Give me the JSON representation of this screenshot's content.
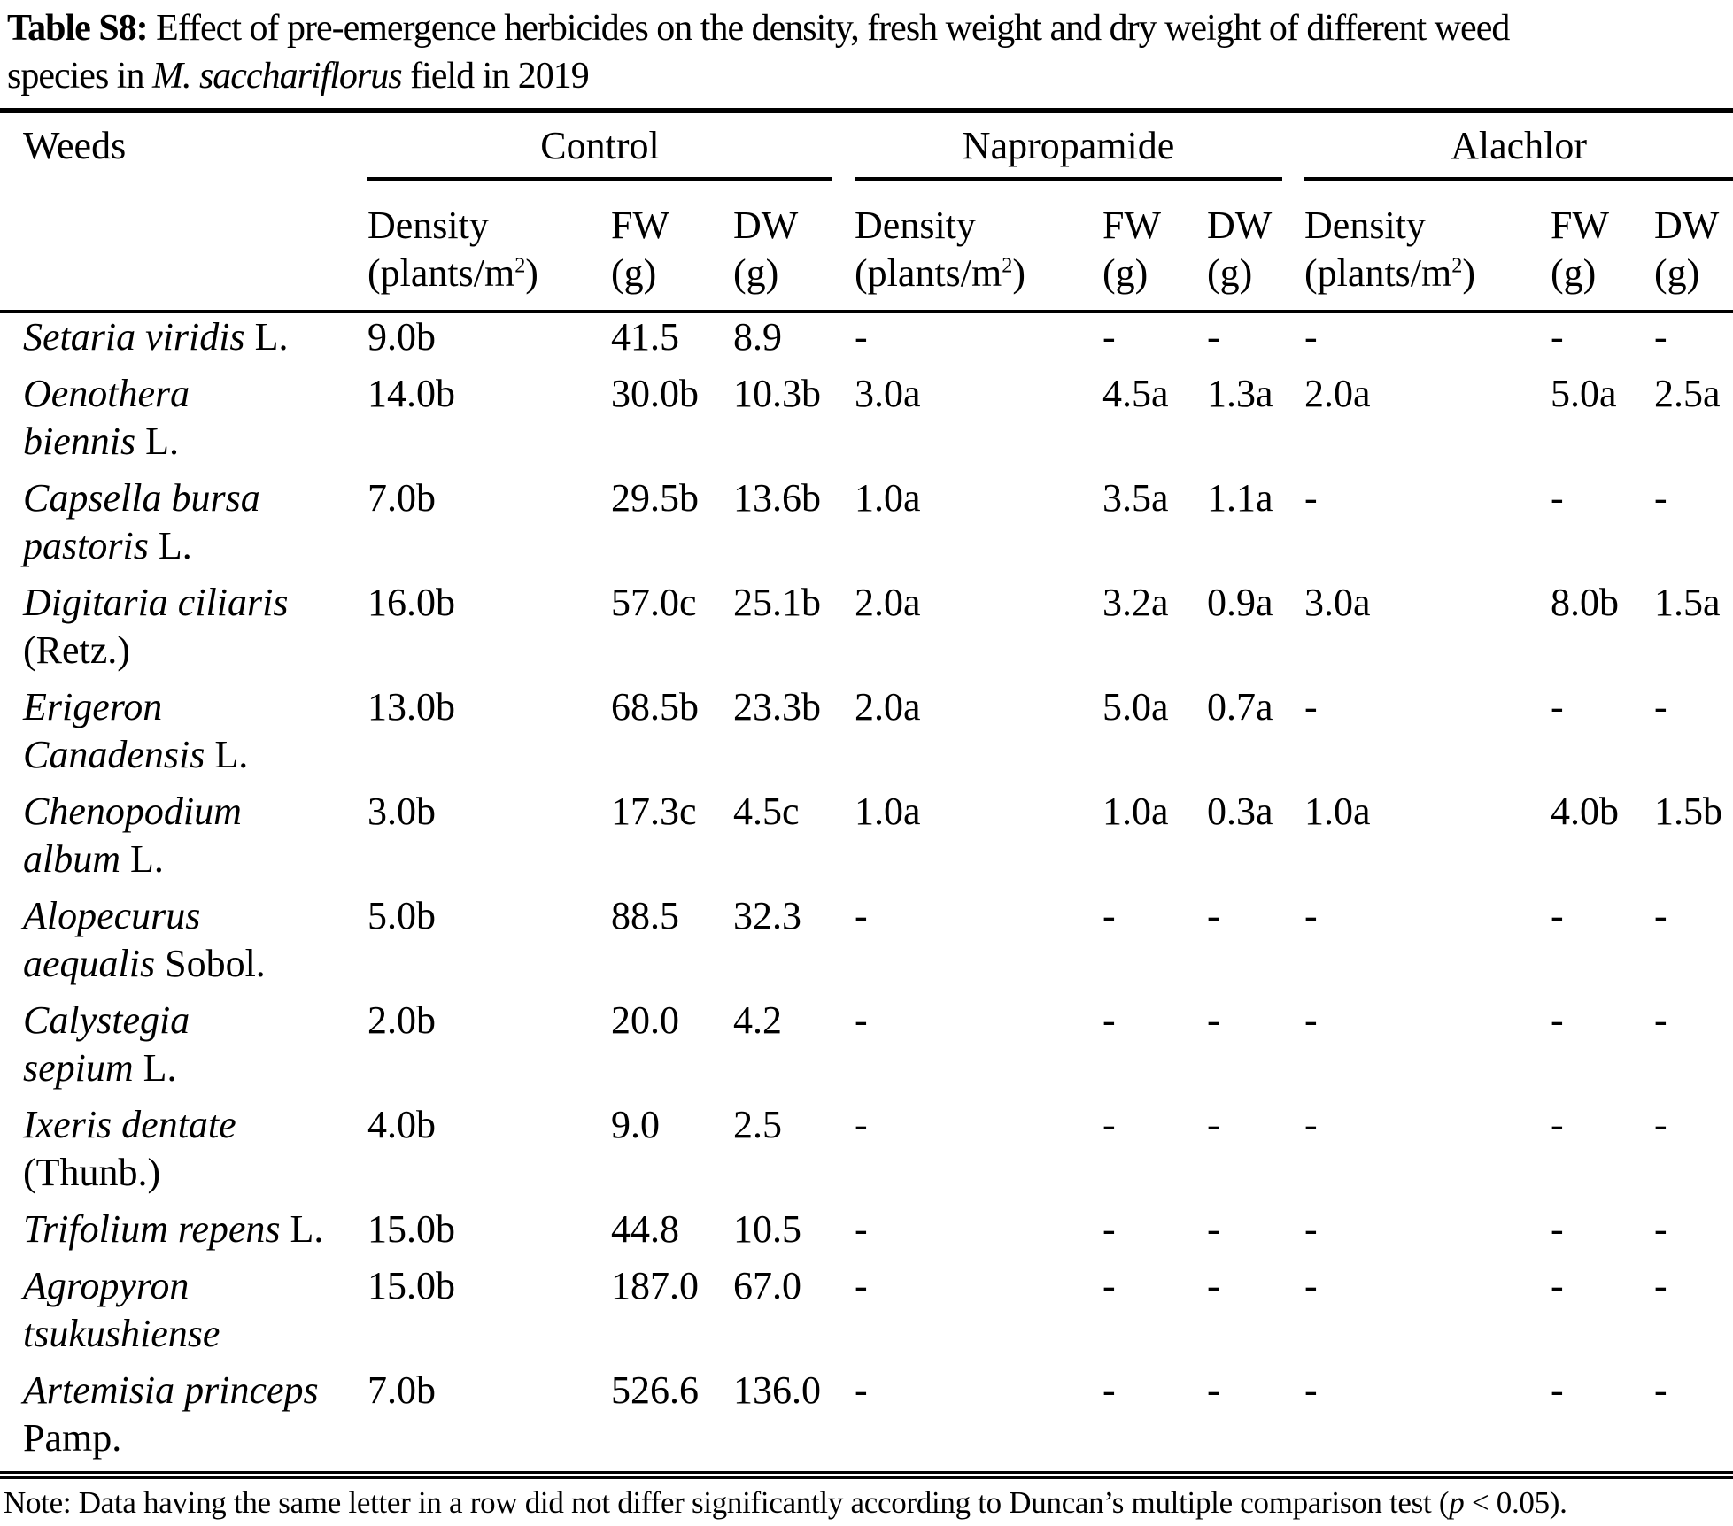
{
  "colors": {
    "text": "#000000",
    "background": "#ffffff",
    "rule": "#000000"
  },
  "title": {
    "label": "Table S8:",
    "line1_rest": "Effect of pre-emergence herbicides on the density, fresh weight and dry weight of different weed",
    "line2_pre": "species in ",
    "line2_italic": "M. sacchariflorus",
    "line2_post": " field in 2019"
  },
  "table": {
    "col_header": "Weeds",
    "groups": [
      "Control",
      "Napropamide",
      "Alachlor"
    ],
    "subheaders": {
      "density_label": "Density",
      "density_unit_prefix": "(plants/m",
      "density_unit_sup": "2",
      "density_unit_suffix": ")",
      "fw_label": "FW",
      "dw_label": "DW",
      "unit_g": "(g)"
    },
    "rows": [
      {
        "species_lines": [
          {
            "italic": "Setaria viridis",
            "roman": " L."
          }
        ],
        "values": [
          "9.0b",
          "41.5",
          "8.9",
          "-",
          "-",
          "-",
          "-",
          "-",
          "-"
        ]
      },
      {
        "species_lines": [
          {
            "italic": "Oenothera",
            "roman": ""
          },
          {
            "italic": "biennis",
            "roman": " L."
          }
        ],
        "values": [
          "14.0b",
          "30.0b",
          "10.3b",
          "3.0a",
          "4.5a",
          "1.3a",
          "2.0a",
          "5.0a",
          "2.5a"
        ]
      },
      {
        "species_lines": [
          {
            "italic": "Capsella bursa",
            "roman": ""
          },
          {
            "italic": "pastoris",
            "roman": " L."
          }
        ],
        "values": [
          "7.0b",
          "29.5b",
          "13.6b",
          "1.0a",
          "3.5a",
          "1.1a",
          "-",
          "-",
          "-"
        ]
      },
      {
        "species_lines": [
          {
            "italic": "Digitaria ciliaris",
            "roman": ""
          },
          {
            "italic": "",
            "roman": "(Retz.)"
          }
        ],
        "values": [
          "16.0b",
          "57.0c",
          "25.1b",
          "2.0a",
          "3.2a",
          "0.9a",
          "3.0a",
          "8.0b",
          "1.5a"
        ]
      },
      {
        "species_lines": [
          {
            "italic": "Erigeron",
            "roman": ""
          },
          {
            "italic": "Canadensis",
            "roman": " L."
          }
        ],
        "values": [
          "13.0b",
          "68.5b",
          "23.3b",
          "2.0a",
          "5.0a",
          "0.7a",
          "-",
          "-",
          "-"
        ]
      },
      {
        "species_lines": [
          {
            "italic": "Chenopodium",
            "roman": ""
          },
          {
            "italic": "album",
            "roman": " L."
          }
        ],
        "values": [
          "3.0b",
          "17.3c",
          "4.5c",
          "1.0a",
          "1.0a",
          "0.3a",
          "1.0a",
          "4.0b",
          "1.5b"
        ]
      },
      {
        "species_lines": [
          {
            "italic": "Alopecurus",
            "roman": ""
          },
          {
            "italic": "aequalis",
            "roman": " Sobol."
          }
        ],
        "values": [
          "5.0b",
          "88.5",
          "32.3",
          "-",
          "-",
          "-",
          "-",
          "-",
          "-"
        ]
      },
      {
        "species_lines": [
          {
            "italic": "Calystegia",
            "roman": ""
          },
          {
            "italic": "sepium",
            "roman": " L."
          }
        ],
        "values": [
          "2.0b",
          "20.0",
          "4.2",
          "-",
          "-",
          "-",
          "-",
          "-",
          "-"
        ]
      },
      {
        "species_lines": [
          {
            "italic": "Ixeris dentate",
            "roman": ""
          },
          {
            "italic": "",
            "roman": "(Thunb.)"
          }
        ],
        "values": [
          "4.0b",
          "9.0",
          "2.5",
          "-",
          "-",
          "-",
          "-",
          "-",
          "-"
        ]
      },
      {
        "species_lines": [
          {
            "italic": "Trifolium repens",
            "roman": " L."
          }
        ],
        "values": [
          "15.0b",
          "44.8",
          "10.5",
          "-",
          "-",
          "-",
          "-",
          "-",
          "-"
        ]
      },
      {
        "species_lines": [
          {
            "italic": "Agropyron",
            "roman": ""
          },
          {
            "italic": "tsukushiense",
            "roman": ""
          }
        ],
        "values": [
          "15.0b",
          "187.0",
          "67.0",
          "-",
          "-",
          "-",
          "-",
          "-",
          "-"
        ]
      },
      {
        "species_lines": [
          {
            "italic": "Artemisia princeps",
            "roman": ""
          },
          {
            "italic": "",
            "roman": "Pamp."
          }
        ],
        "values": [
          "7.0b",
          "526.6",
          "136.0",
          "-",
          "-",
          "-",
          "-",
          "-",
          "-"
        ]
      }
    ]
  },
  "note": {
    "prefix": "Note: Data having the same letter in a row did not differ significantly according to Duncan’s multiple comparison test (",
    "p": "p",
    "suffix": " < 0.05)."
  }
}
